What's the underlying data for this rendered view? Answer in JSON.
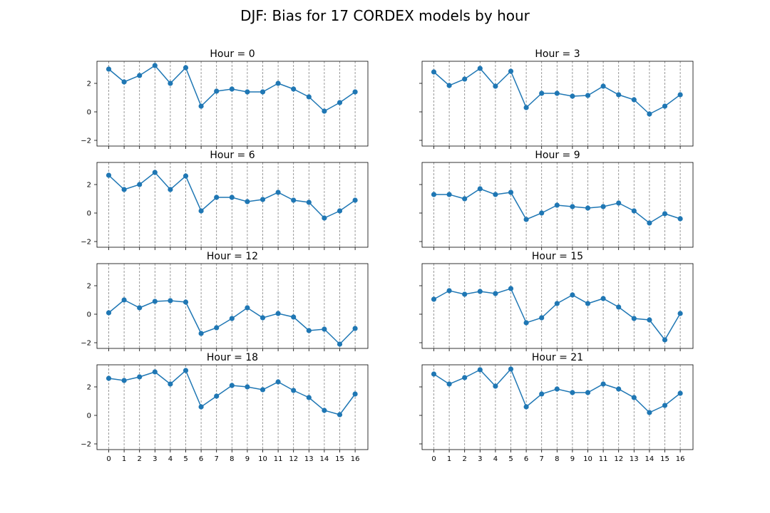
{
  "title": "DJF: Bias for 17 CORDEX models by hour",
  "chart_data": [
    {
      "type": "line",
      "title": "Hour = 0",
      "x": [
        0,
        1,
        2,
        3,
        4,
        5,
        6,
        7,
        8,
        9,
        10,
        11,
        12,
        13,
        14,
        15,
        16
      ],
      "series": [
        {
          "values": [
            3.0,
            2.1,
            2.55,
            3.25,
            2.0,
            3.1,
            0.4,
            1.45,
            1.6,
            1.4,
            1.4,
            2.0,
            1.6,
            1.05,
            0.05,
            0.65,
            1.4
          ]
        }
      ],
      "ylim": [
        -2.4,
        3.55
      ],
      "yticks": [
        -2,
        0,
        2
      ],
      "xticks": [],
      "grid": "x-dashed"
    },
    {
      "type": "line",
      "title": "Hour = 3",
      "x": [
        0,
        1,
        2,
        3,
        4,
        5,
        6,
        7,
        8,
        9,
        10,
        11,
        12,
        13,
        14,
        15,
        16
      ],
      "series": [
        {
          "values": [
            2.8,
            1.85,
            2.3,
            3.05,
            1.8,
            2.85,
            0.3,
            1.3,
            1.3,
            1.1,
            1.15,
            1.8,
            1.2,
            0.85,
            -0.15,
            0.4,
            1.2
          ]
        }
      ],
      "ylim": [
        -2.4,
        3.55
      ],
      "yticks": [],
      "xticks": [],
      "grid": "x-dashed"
    },
    {
      "type": "line",
      "title": "Hour = 6",
      "x": [
        0,
        1,
        2,
        3,
        4,
        5,
        6,
        7,
        8,
        9,
        10,
        11,
        12,
        13,
        14,
        15,
        16
      ],
      "series": [
        {
          "values": [
            2.65,
            1.65,
            2.0,
            2.85,
            1.65,
            2.6,
            0.15,
            1.1,
            1.1,
            0.8,
            0.95,
            1.45,
            0.9,
            0.75,
            -0.35,
            0.15,
            0.9
          ]
        }
      ],
      "ylim": [
        -2.4,
        3.55
      ],
      "yticks": [
        -2,
        0,
        2
      ],
      "xticks": [],
      "grid": "x-dashed"
    },
    {
      "type": "line",
      "title": "Hour = 9",
      "x": [
        0,
        1,
        2,
        3,
        4,
        5,
        6,
        7,
        8,
        9,
        10,
        11,
        12,
        13,
        14,
        15,
        16
      ],
      "series": [
        {
          "values": [
            1.3,
            1.3,
            1.0,
            1.7,
            1.3,
            1.45,
            -0.45,
            0.0,
            0.55,
            0.45,
            0.35,
            0.45,
            0.7,
            0.15,
            -0.7,
            -0.05,
            -0.4
          ]
        }
      ],
      "ylim": [
        -2.4,
        3.55
      ],
      "yticks": [],
      "xticks": [],
      "grid": "x-dashed"
    },
    {
      "type": "line",
      "title": "Hour = 12",
      "x": [
        0,
        1,
        2,
        3,
        4,
        5,
        6,
        7,
        8,
        9,
        10,
        11,
        12,
        13,
        14,
        15,
        16
      ],
      "series": [
        {
          "values": [
            0.1,
            1.0,
            0.45,
            0.9,
            0.95,
            0.85,
            -1.35,
            -0.95,
            -0.3,
            0.45,
            -0.25,
            0.05,
            -0.2,
            -1.15,
            -1.05,
            -2.1,
            -1.0
          ]
        }
      ],
      "ylim": [
        -2.4,
        3.55
      ],
      "yticks": [
        -2,
        0,
        2
      ],
      "xticks": [],
      "grid": "x-dashed"
    },
    {
      "type": "line",
      "title": "Hour = 15",
      "x": [
        0,
        1,
        2,
        3,
        4,
        5,
        6,
        7,
        8,
        9,
        10,
        11,
        12,
        13,
        14,
        15,
        16
      ],
      "series": [
        {
          "values": [
            1.05,
            1.65,
            1.4,
            1.6,
            1.45,
            1.8,
            -0.6,
            -0.25,
            0.75,
            1.35,
            0.75,
            1.1,
            0.5,
            -0.3,
            -0.4,
            -1.8,
            0.05
          ]
        }
      ],
      "ylim": [
        -2.4,
        3.55
      ],
      "yticks": [],
      "xticks": [],
      "grid": "x-dashed"
    },
    {
      "type": "line",
      "title": "Hour = 18",
      "x": [
        0,
        1,
        2,
        3,
        4,
        5,
        6,
        7,
        8,
        9,
        10,
        11,
        12,
        13,
        14,
        15,
        16
      ],
      "series": [
        {
          "values": [
            2.6,
            2.45,
            2.7,
            3.05,
            2.2,
            3.15,
            0.6,
            1.35,
            2.1,
            2.0,
            1.8,
            2.35,
            1.75,
            1.25,
            0.35,
            0.05,
            1.5
          ]
        }
      ],
      "ylim": [
        -2.4,
        3.55
      ],
      "yticks": [
        -2,
        0,
        2
      ],
      "xticks": [
        0,
        1,
        2,
        3,
        4,
        5,
        6,
        7,
        8,
        9,
        10,
        11,
        12,
        13,
        14,
        15,
        16
      ],
      "grid": "x-dashed"
    },
    {
      "type": "line",
      "title": "Hour = 21",
      "x": [
        0,
        1,
        2,
        3,
        4,
        5,
        6,
        7,
        8,
        9,
        10,
        11,
        12,
        13,
        14,
        15,
        16
      ],
      "series": [
        {
          "values": [
            2.9,
            2.2,
            2.65,
            3.2,
            2.05,
            3.25,
            0.6,
            1.5,
            1.85,
            1.6,
            1.6,
            2.2,
            1.85,
            1.25,
            0.2,
            0.7,
            1.55
          ]
        }
      ],
      "ylim": [
        -2.4,
        3.55
      ],
      "yticks": [],
      "xticks": [
        0,
        1,
        2,
        3,
        4,
        5,
        6,
        7,
        8,
        9,
        10,
        11,
        12,
        13,
        14,
        15,
        16
      ],
      "grid": "x-dashed"
    }
  ],
  "colors": {
    "line": "#1f77b4",
    "grid": "#808080",
    "axis": "#000000"
  }
}
